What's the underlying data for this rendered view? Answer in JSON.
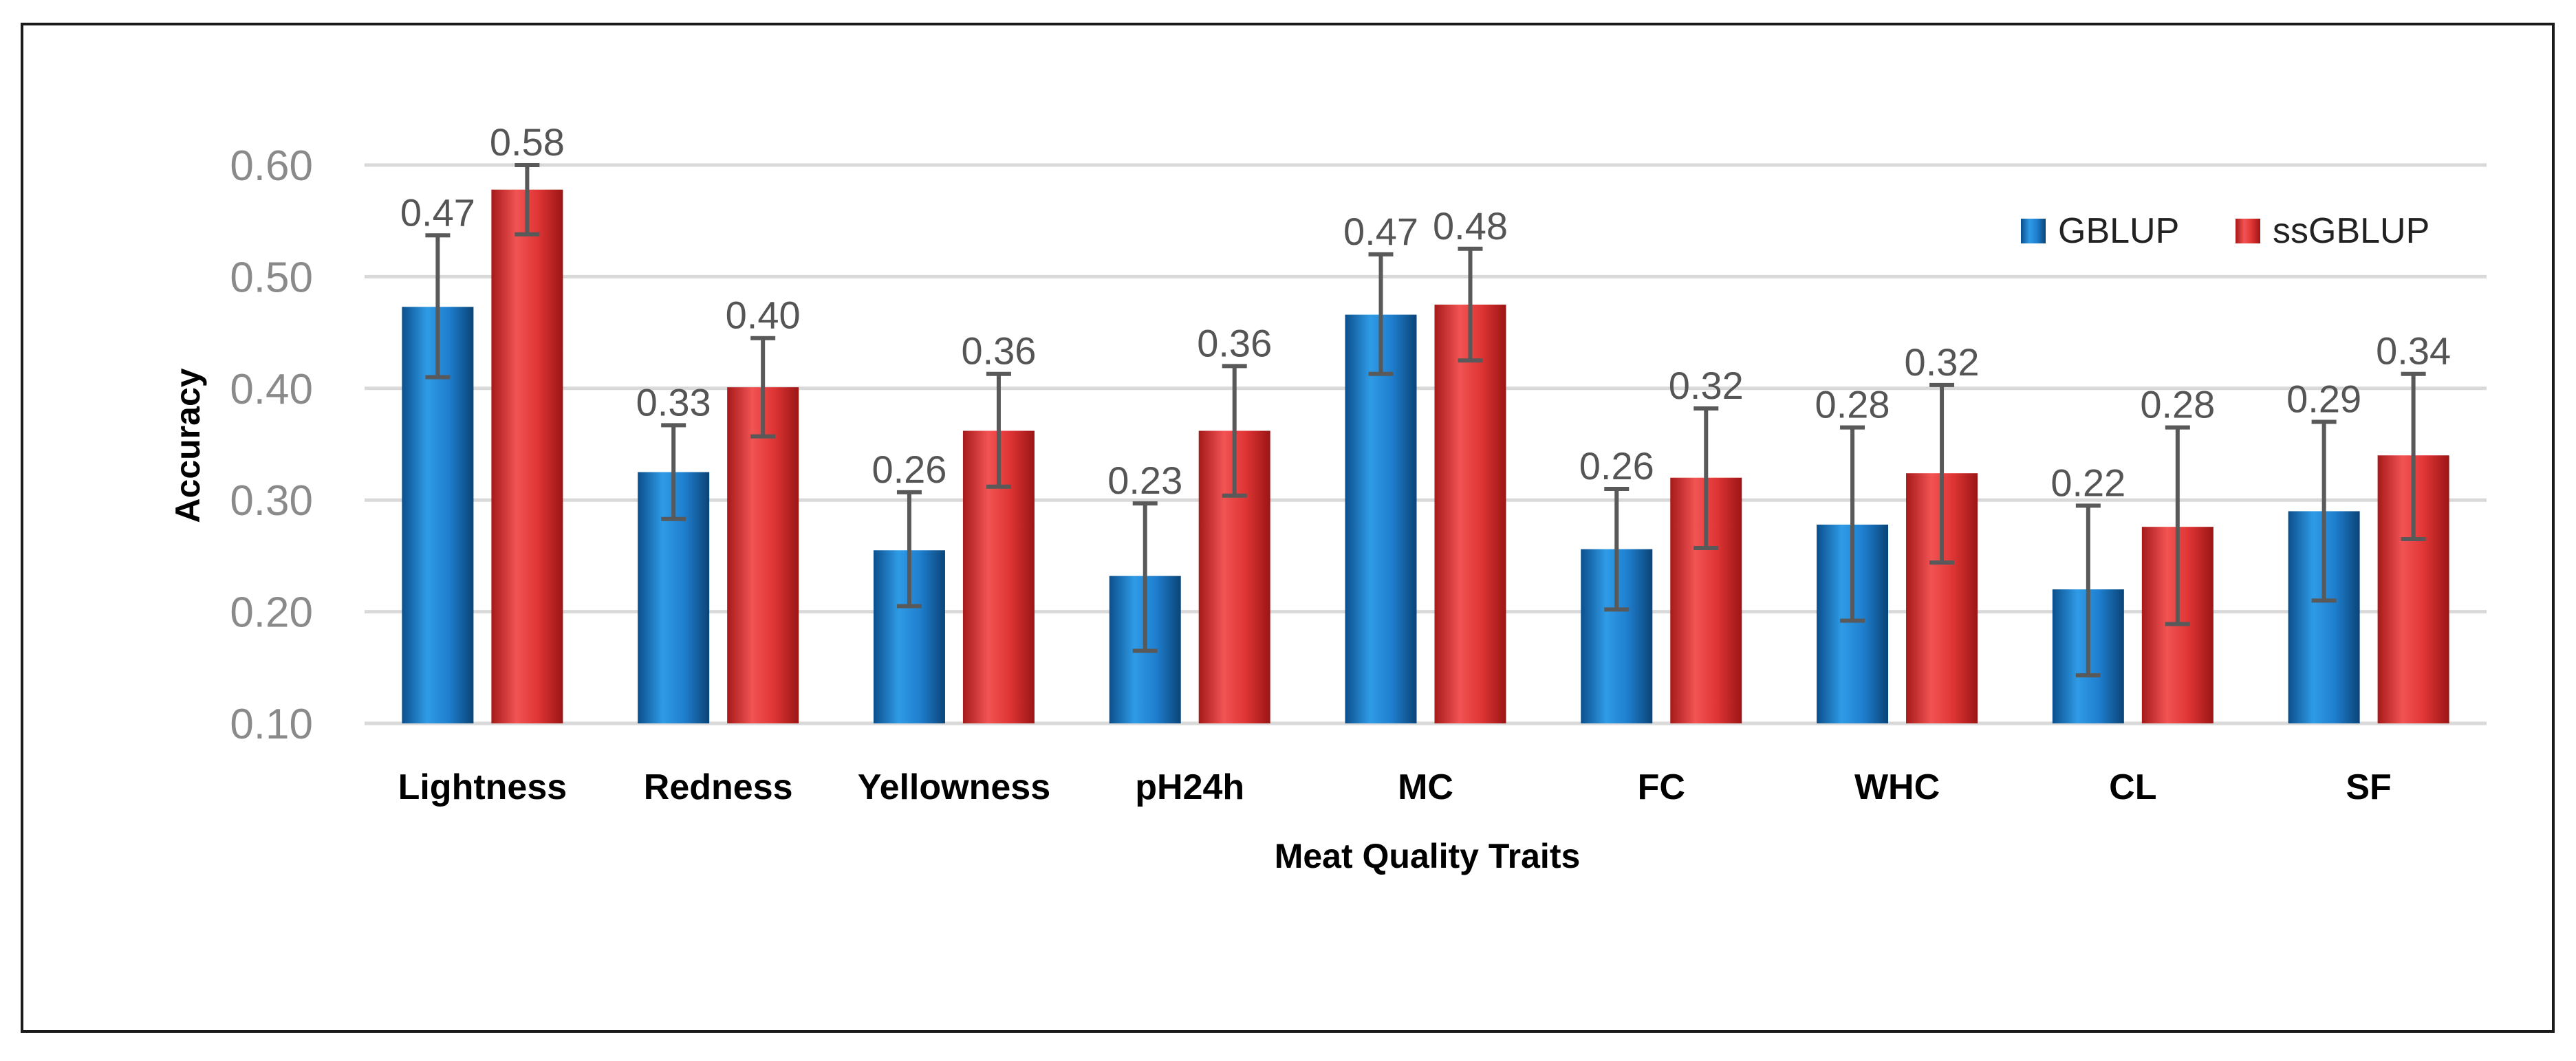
{
  "chart_data": {
    "type": "bar",
    "title": "",
    "xlabel": "Meat Quality Traits",
    "ylabel": "Accuracy",
    "ylim": [
      0.1,
      0.6
    ],
    "yticks": [
      "0.10",
      "0.20",
      "0.30",
      "0.40",
      "0.50",
      "0.60"
    ],
    "grid": true,
    "legend_position": "top-right",
    "categories": [
      "Lightness",
      "Redness",
      "Yellowness",
      "pH24h",
      "MC",
      "FC",
      "WHC",
      "CL",
      "SF"
    ],
    "series": [
      {
        "name": "GBLUP",
        "color": "#1f77c4",
        "values": [
          0.473,
          0.325,
          0.255,
          0.232,
          0.466,
          0.256,
          0.278,
          0.22,
          0.29
        ],
        "labels": [
          "0.47",
          "0.33",
          "0.26",
          "0.23",
          "0.47",
          "0.26",
          "0.28",
          "0.22",
          "0.29"
        ],
        "error_low": [
          0.41,
          0.283,
          0.205,
          0.165,
          0.413,
          0.202,
          0.192,
          0.143,
          0.21
        ],
        "error_high": [
          0.537,
          0.367,
          0.307,
          0.297,
          0.52,
          0.31,
          0.365,
          0.295,
          0.37
        ]
      },
      {
        "name": "ssGBLUP",
        "color": "#e03a3a",
        "values": [
          0.578,
          0.401,
          0.362,
          0.362,
          0.475,
          0.32,
          0.324,
          0.276,
          0.34
        ],
        "labels": [
          "0.58",
          "0.40",
          "0.36",
          "0.36",
          "0.48",
          "0.32",
          "0.32",
          "0.28",
          "0.34"
        ],
        "error_low": [
          0.538,
          0.357,
          0.312,
          0.304,
          0.425,
          0.257,
          0.244,
          0.189,
          0.265
        ],
        "error_high": [
          0.6,
          0.445,
          0.413,
          0.42,
          0.525,
          0.382,
          0.403,
          0.365,
          0.413
        ]
      }
    ]
  }
}
